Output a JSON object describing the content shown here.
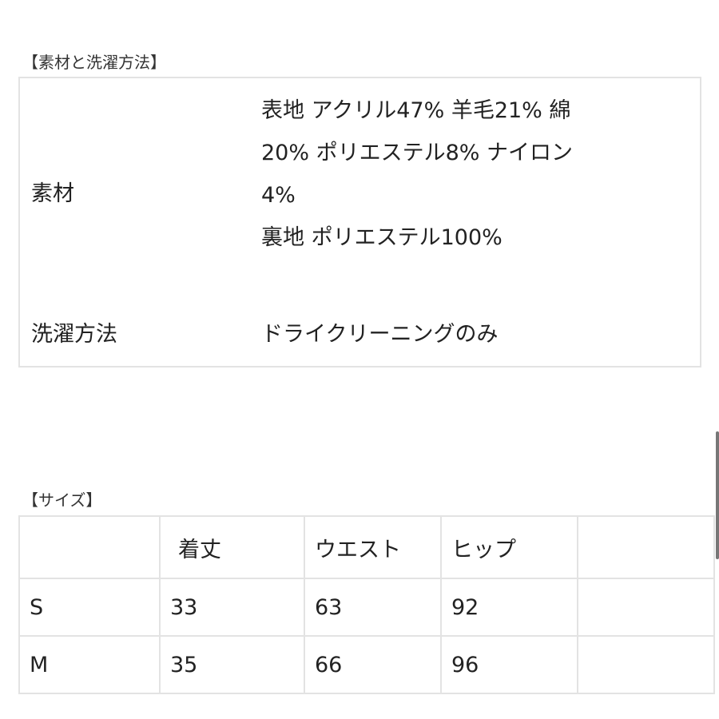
{
  "material_section": {
    "title": "【素材と洗濯方法】",
    "rows": [
      {
        "label": "素材",
        "lines": [
          "表地 アクリル47% 羊毛21% 綿",
          "20% ポリエステル8% ナイロン",
          "4%",
          "裏地 ポリエステル100%"
        ]
      },
      {
        "label": "洗濯方法",
        "lines": [
          "ドライクリーニングのみ"
        ]
      }
    ]
  },
  "size_section": {
    "title": "【サイズ】",
    "headers": [
      "",
      "着丈",
      "ウエスト",
      "ヒップ",
      ""
    ],
    "rows": [
      [
        "S",
        "33",
        "63",
        "92",
        ""
      ],
      [
        "M",
        "35",
        "66",
        "96",
        ""
      ]
    ]
  }
}
